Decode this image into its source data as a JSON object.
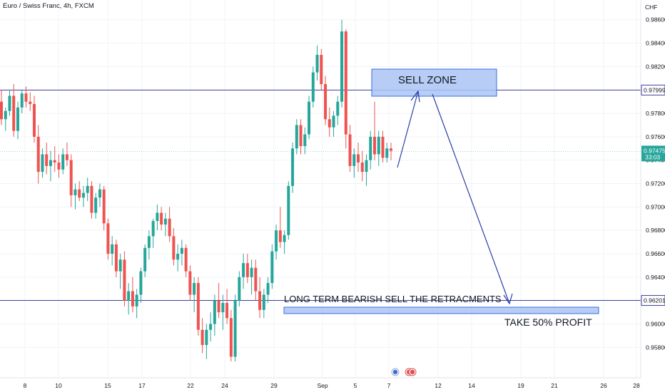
{
  "header": {
    "title": "Euro / Swiss Franc, 4h, FXCM",
    "currency": "CHF"
  },
  "chart_data": {
    "type": "candlestick",
    "symbol": "EURCHF",
    "timeframe": "4h",
    "x_labels": [
      "8",
      "10",
      "15",
      "17",
      "22",
      "24",
      "29",
      "Sep",
      "5",
      "7",
      "12",
      "14",
      "19",
      "21",
      "26",
      "28"
    ],
    "y_ticks": [
      0.958,
      0.96,
      0.962,
      0.964,
      0.966,
      0.968,
      0.97,
      0.972,
      0.974,
      0.976,
      0.978,
      0.98,
      0.982,
      0.984,
      0.986
    ],
    "y_tick_labels": [
      "0.95800",
      "0.96000",
      "0.96200",
      "0.96400",
      "0.96600",
      "0.96800",
      "0.97000",
      "0.97200",
      "0.97400",
      "0.97600",
      "0.97800",
      "0.98000",
      "0.98200",
      "0.98400",
      "0.98600"
    ],
    "ylim": [
      0.9565,
      0.9872
    ],
    "colors": {
      "up": "#26a69a",
      "down": "#ef5350",
      "level_line": "#3f3f9f",
      "zone_fill": "#aac4f5",
      "zone_border": "#3b6fe0",
      "arrow": "#2a3fa6"
    },
    "levels": [
      {
        "value": 0.97999,
        "label": "0.97999"
      },
      {
        "value": 0.96201,
        "label": "0.96201"
      }
    ],
    "last_price": {
      "value": 0.97475,
      "label": "0.97475",
      "countdown": "33:03"
    },
    "annotations": {
      "sell_zone": "SELL ZONE",
      "strategy": "LONG TERM BEARISH SELL THE RETRACMENTS",
      "take_profit": "TAKE 50% PROFIT"
    },
    "candles": [
      [
        0.979,
        0.98,
        0.977,
        0.9775
      ],
      [
        0.9775,
        0.9785,
        0.9765,
        0.9782
      ],
      [
        0.9782,
        0.98,
        0.9778,
        0.9795
      ],
      [
        0.9795,
        0.9805,
        0.976,
        0.9765
      ],
      [
        0.9765,
        0.979,
        0.9758,
        0.9785
      ],
      [
        0.9785,
        0.98,
        0.978,
        0.9797
      ],
      [
        0.9797,
        0.9803,
        0.9785,
        0.979
      ],
      [
        0.979,
        0.9798,
        0.9782,
        0.9788
      ],
      [
        0.9788,
        0.9795,
        0.9755,
        0.976
      ],
      [
        0.976,
        0.977,
        0.972,
        0.973
      ],
      [
        0.973,
        0.975,
        0.9725,
        0.9745
      ],
      [
        0.9745,
        0.9755,
        0.9728,
        0.9735
      ],
      [
        0.9735,
        0.9748,
        0.9722,
        0.974
      ],
      [
        0.974,
        0.9752,
        0.973,
        0.9738
      ],
      [
        0.9738,
        0.9745,
        0.9725,
        0.9732
      ],
      [
        0.9732,
        0.975,
        0.9728,
        0.9745
      ],
      [
        0.9745,
        0.9755,
        0.9735,
        0.974
      ],
      [
        0.974,
        0.9745,
        0.97,
        0.971
      ],
      [
        0.971,
        0.972,
        0.9698,
        0.9715
      ],
      [
        0.9715,
        0.9722,
        0.9705,
        0.9708
      ],
      [
        0.9708,
        0.9718,
        0.97,
        0.9712
      ],
      [
        0.9712,
        0.9725,
        0.9705,
        0.9718
      ],
      [
        0.9718,
        0.9722,
        0.969,
        0.9695
      ],
      [
        0.9695,
        0.9712,
        0.969,
        0.9708
      ],
      [
        0.9708,
        0.972,
        0.97,
        0.9715
      ],
      [
        0.9715,
        0.9718,
        0.968,
        0.9686
      ],
      [
        0.9686,
        0.969,
        0.9655,
        0.966
      ],
      [
        0.966,
        0.9675,
        0.965,
        0.9668
      ],
      [
        0.9668,
        0.9672,
        0.964,
        0.9645
      ],
      [
        0.9645,
        0.966,
        0.963,
        0.9655
      ],
      [
        0.9655,
        0.9662,
        0.9615,
        0.962
      ],
      [
        0.962,
        0.9635,
        0.9608,
        0.9628
      ],
      [
        0.9628,
        0.964,
        0.961,
        0.9615
      ],
      [
        0.9615,
        0.963,
        0.9605,
        0.9625
      ],
      [
        0.9625,
        0.9648,
        0.9618,
        0.9645
      ],
      [
        0.9645,
        0.9668,
        0.964,
        0.9665
      ],
      [
        0.9665,
        0.968,
        0.9655,
        0.9675
      ],
      [
        0.9675,
        0.969,
        0.9665,
        0.9688
      ],
      [
        0.9688,
        0.9702,
        0.968,
        0.9695
      ],
      [
        0.9695,
        0.97,
        0.968,
        0.9685
      ],
      [
        0.9685,
        0.9695,
        0.9675,
        0.969
      ],
      [
        0.969,
        0.97,
        0.967,
        0.9675
      ],
      [
        0.9675,
        0.9682,
        0.965,
        0.9655
      ],
      [
        0.9655,
        0.9668,
        0.9645,
        0.966
      ],
      [
        0.966,
        0.9672,
        0.965,
        0.9665
      ],
      [
        0.9665,
        0.9668,
        0.964,
        0.9645
      ],
      [
        0.9645,
        0.965,
        0.962,
        0.9625
      ],
      [
        0.9625,
        0.964,
        0.961,
        0.9635
      ],
      [
        0.9635,
        0.964,
        0.959,
        0.9595
      ],
      [
        0.9595,
        0.9605,
        0.9575,
        0.9582
      ],
      [
        0.9582,
        0.96,
        0.957,
        0.9595
      ],
      [
        0.9595,
        0.961,
        0.9585,
        0.96
      ],
      [
        0.96,
        0.9625,
        0.959,
        0.962
      ],
      [
        0.962,
        0.9635,
        0.9605,
        0.961
      ],
      [
        0.961,
        0.9625,
        0.9595,
        0.9618
      ],
      [
        0.9618,
        0.963,
        0.96,
        0.9605
      ],
      [
        0.9605,
        0.9612,
        0.9568,
        0.9572
      ],
      [
        0.9572,
        0.9625,
        0.9568,
        0.962
      ],
      [
        0.962,
        0.9645,
        0.9615,
        0.964
      ],
      [
        0.964,
        0.966,
        0.963,
        0.9652
      ],
      [
        0.9652,
        0.966,
        0.9635,
        0.964
      ],
      [
        0.964,
        0.9655,
        0.9625,
        0.9648
      ],
      [
        0.9648,
        0.9655,
        0.962,
        0.9628
      ],
      [
        0.9628,
        0.964,
        0.9605,
        0.9612
      ],
      [
        0.9612,
        0.963,
        0.9605,
        0.9625
      ],
      [
        0.9625,
        0.964,
        0.9618,
        0.9635
      ],
      [
        0.9635,
        0.9668,
        0.963,
        0.9662
      ],
      [
        0.9662,
        0.9685,
        0.9655,
        0.968
      ],
      [
        0.968,
        0.97,
        0.9665,
        0.967
      ],
      [
        0.967,
        0.968,
        0.966,
        0.9676
      ],
      [
        0.9676,
        0.9722,
        0.9672,
        0.9718
      ],
      [
        0.9718,
        0.9755,
        0.9712,
        0.975
      ],
      [
        0.975,
        0.9775,
        0.9745,
        0.977
      ],
      [
        0.977,
        0.9775,
        0.9745,
        0.9752
      ],
      [
        0.9752,
        0.9768,
        0.9745,
        0.9762
      ],
      [
        0.9762,
        0.9795,
        0.9758,
        0.979
      ],
      [
        0.979,
        0.982,
        0.9785,
        0.9815
      ],
      [
        0.9815,
        0.9838,
        0.9808,
        0.983
      ],
      [
        0.983,
        0.9835,
        0.98,
        0.9805
      ],
      [
        0.9805,
        0.9812,
        0.977,
        0.9775
      ],
      [
        0.9775,
        0.9785,
        0.976,
        0.9768
      ],
      [
        0.9768,
        0.9782,
        0.976,
        0.9778
      ],
      [
        0.9778,
        0.9795,
        0.977,
        0.979
      ],
      [
        0.979,
        0.986,
        0.9785,
        0.985
      ],
      [
        0.985,
        0.9852,
        0.975,
        0.9762
      ],
      [
        0.9762,
        0.977,
        0.973,
        0.9735
      ],
      [
        0.9735,
        0.975,
        0.9725,
        0.9745
      ],
      [
        0.9745,
        0.9755,
        0.973,
        0.9738
      ],
      [
        0.9738,
        0.9748,
        0.9722,
        0.973
      ],
      [
        0.973,
        0.9745,
        0.9718,
        0.974
      ],
      [
        0.974,
        0.9765,
        0.9732,
        0.976
      ],
      [
        0.976,
        0.979,
        0.974,
        0.9745
      ],
      [
        0.9745,
        0.9765,
        0.9735,
        0.976
      ],
      [
        0.976,
        0.9765,
        0.9738,
        0.9742
      ],
      [
        0.9742,
        0.9755,
        0.9738,
        0.975
      ],
      [
        0.975,
        0.9755,
        0.974,
        0.9748
      ]
    ]
  }
}
